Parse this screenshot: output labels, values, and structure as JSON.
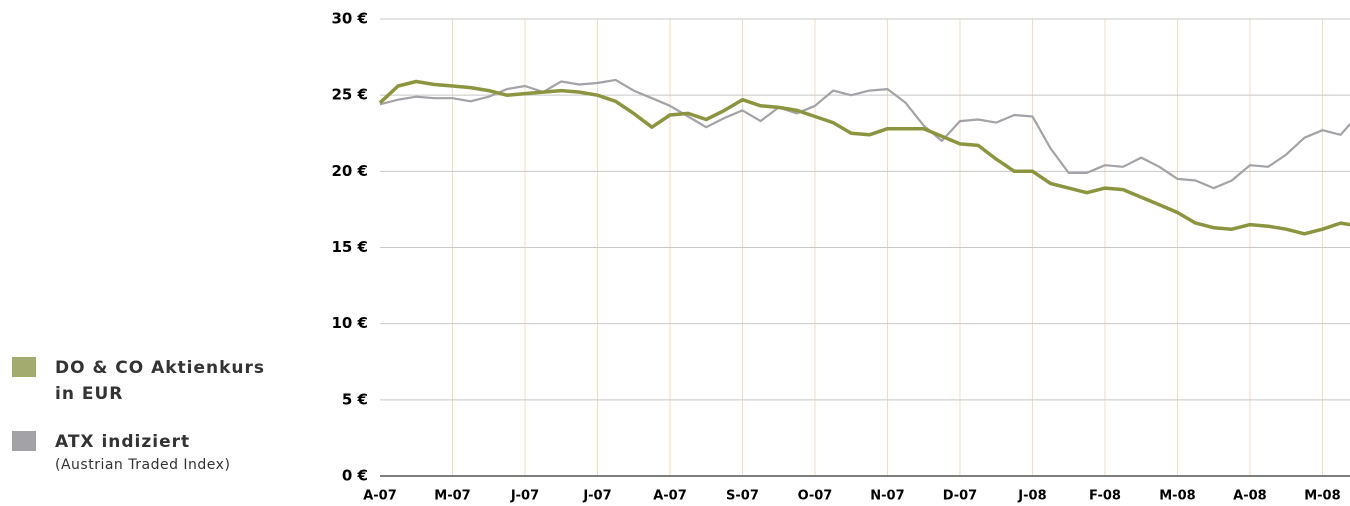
{
  "chart_data": {
    "type": "line",
    "x": [
      0,
      0.25,
      0.5,
      0.75,
      1,
      1.25,
      1.5,
      1.75,
      2,
      2.25,
      2.5,
      2.75,
      3,
      3.25,
      3.5,
      3.75,
      4,
      4.25,
      4.5,
      4.75,
      5,
      5.25,
      5.5,
      5.75,
      6,
      6.25,
      6.5,
      6.75,
      7,
      7.25,
      7.5,
      7.75,
      8,
      8.25,
      8.5,
      8.75,
      9,
      9.25,
      9.5,
      9.75,
      10,
      10.25,
      10.5,
      10.75,
      11,
      11.25,
      11.5,
      11.75,
      12,
      12.25,
      12.5,
      12.75,
      13,
      13.25,
      13.38
    ],
    "series": [
      {
        "name": "DO & CO Aktienkurs in EUR",
        "color": "#8c9440",
        "legend_color": "#a4ab6e",
        "values": [
          24.5,
          25.6,
          25.9,
          25.7,
          25.6,
          25.5,
          25.3,
          25.0,
          25.1,
          25.2,
          25.3,
          25.2,
          25.0,
          24.6,
          23.8,
          22.9,
          23.7,
          23.8,
          23.4,
          24.0,
          24.7,
          24.3,
          24.2,
          24.0,
          23.6,
          23.2,
          22.5,
          22.4,
          22.8,
          22.8,
          22.8,
          22.3,
          21.8,
          21.7,
          20.8,
          20.0,
          20.0,
          19.2,
          18.9,
          18.6,
          18.9,
          18.8,
          18.3,
          17.8,
          17.3,
          16.6,
          16.3,
          16.2,
          16.5,
          16.4,
          16.2,
          15.9,
          16.2,
          16.6,
          16.5
        ]
      },
      {
        "name": "ATX indiziert",
        "description": "(Austrian Traded Index)",
        "color": "#a3a3a7",
        "legend_color": "#a3a3a7",
        "values": [
          24.4,
          24.7,
          24.9,
          24.8,
          24.8,
          24.6,
          24.9,
          25.4,
          25.6,
          25.2,
          25.9,
          25.7,
          25.8,
          26.0,
          25.3,
          24.8,
          24.3,
          23.6,
          22.9,
          23.5,
          24.0,
          23.3,
          24.2,
          23.8,
          24.3,
          25.3,
          25.0,
          25.3,
          25.4,
          24.5,
          23.0,
          22.0,
          23.3,
          23.4,
          23.2,
          23.7,
          23.6,
          21.5,
          19.9,
          19.9,
          20.4,
          20.3,
          20.9,
          20.3,
          19.5,
          19.4,
          18.9,
          19.4,
          20.4,
          20.3,
          21.1,
          22.2,
          22.7,
          22.4,
          23.1
        ]
      }
    ],
    "xlim": [
      0,
      13.38
    ],
    "xticks": [
      {
        "value": 0,
        "label": "A-07"
      },
      {
        "value": 1,
        "label": "M-07"
      },
      {
        "value": 2,
        "label": "J-07"
      },
      {
        "value": 3,
        "label": "J-07"
      },
      {
        "value": 4,
        "label": "A-07"
      },
      {
        "value": 5,
        "label": "S-07"
      },
      {
        "value": 6,
        "label": "O-07"
      },
      {
        "value": 7,
        "label": "N-07"
      },
      {
        "value": 8,
        "label": "D-07"
      },
      {
        "value": 9,
        "label": "J-08"
      },
      {
        "value": 10,
        "label": "F-08"
      },
      {
        "value": 11,
        "label": "M-08"
      },
      {
        "value": 12,
        "label": "A-08"
      },
      {
        "value": 13,
        "label": "M-08"
      }
    ],
    "ylim": [
      0,
      30
    ],
    "yticks": [
      {
        "value": 0,
        "label": "0 €"
      },
      {
        "value": 5,
        "label": "5 €"
      },
      {
        "value": 10,
        "label": "10 €"
      },
      {
        "value": 15,
        "label": "15 €"
      },
      {
        "value": 20,
        "label": "20 €"
      },
      {
        "value": 25,
        "label": "25 €"
      },
      {
        "value": 30,
        "label": "30 €"
      }
    ],
    "grid": true
  }
}
